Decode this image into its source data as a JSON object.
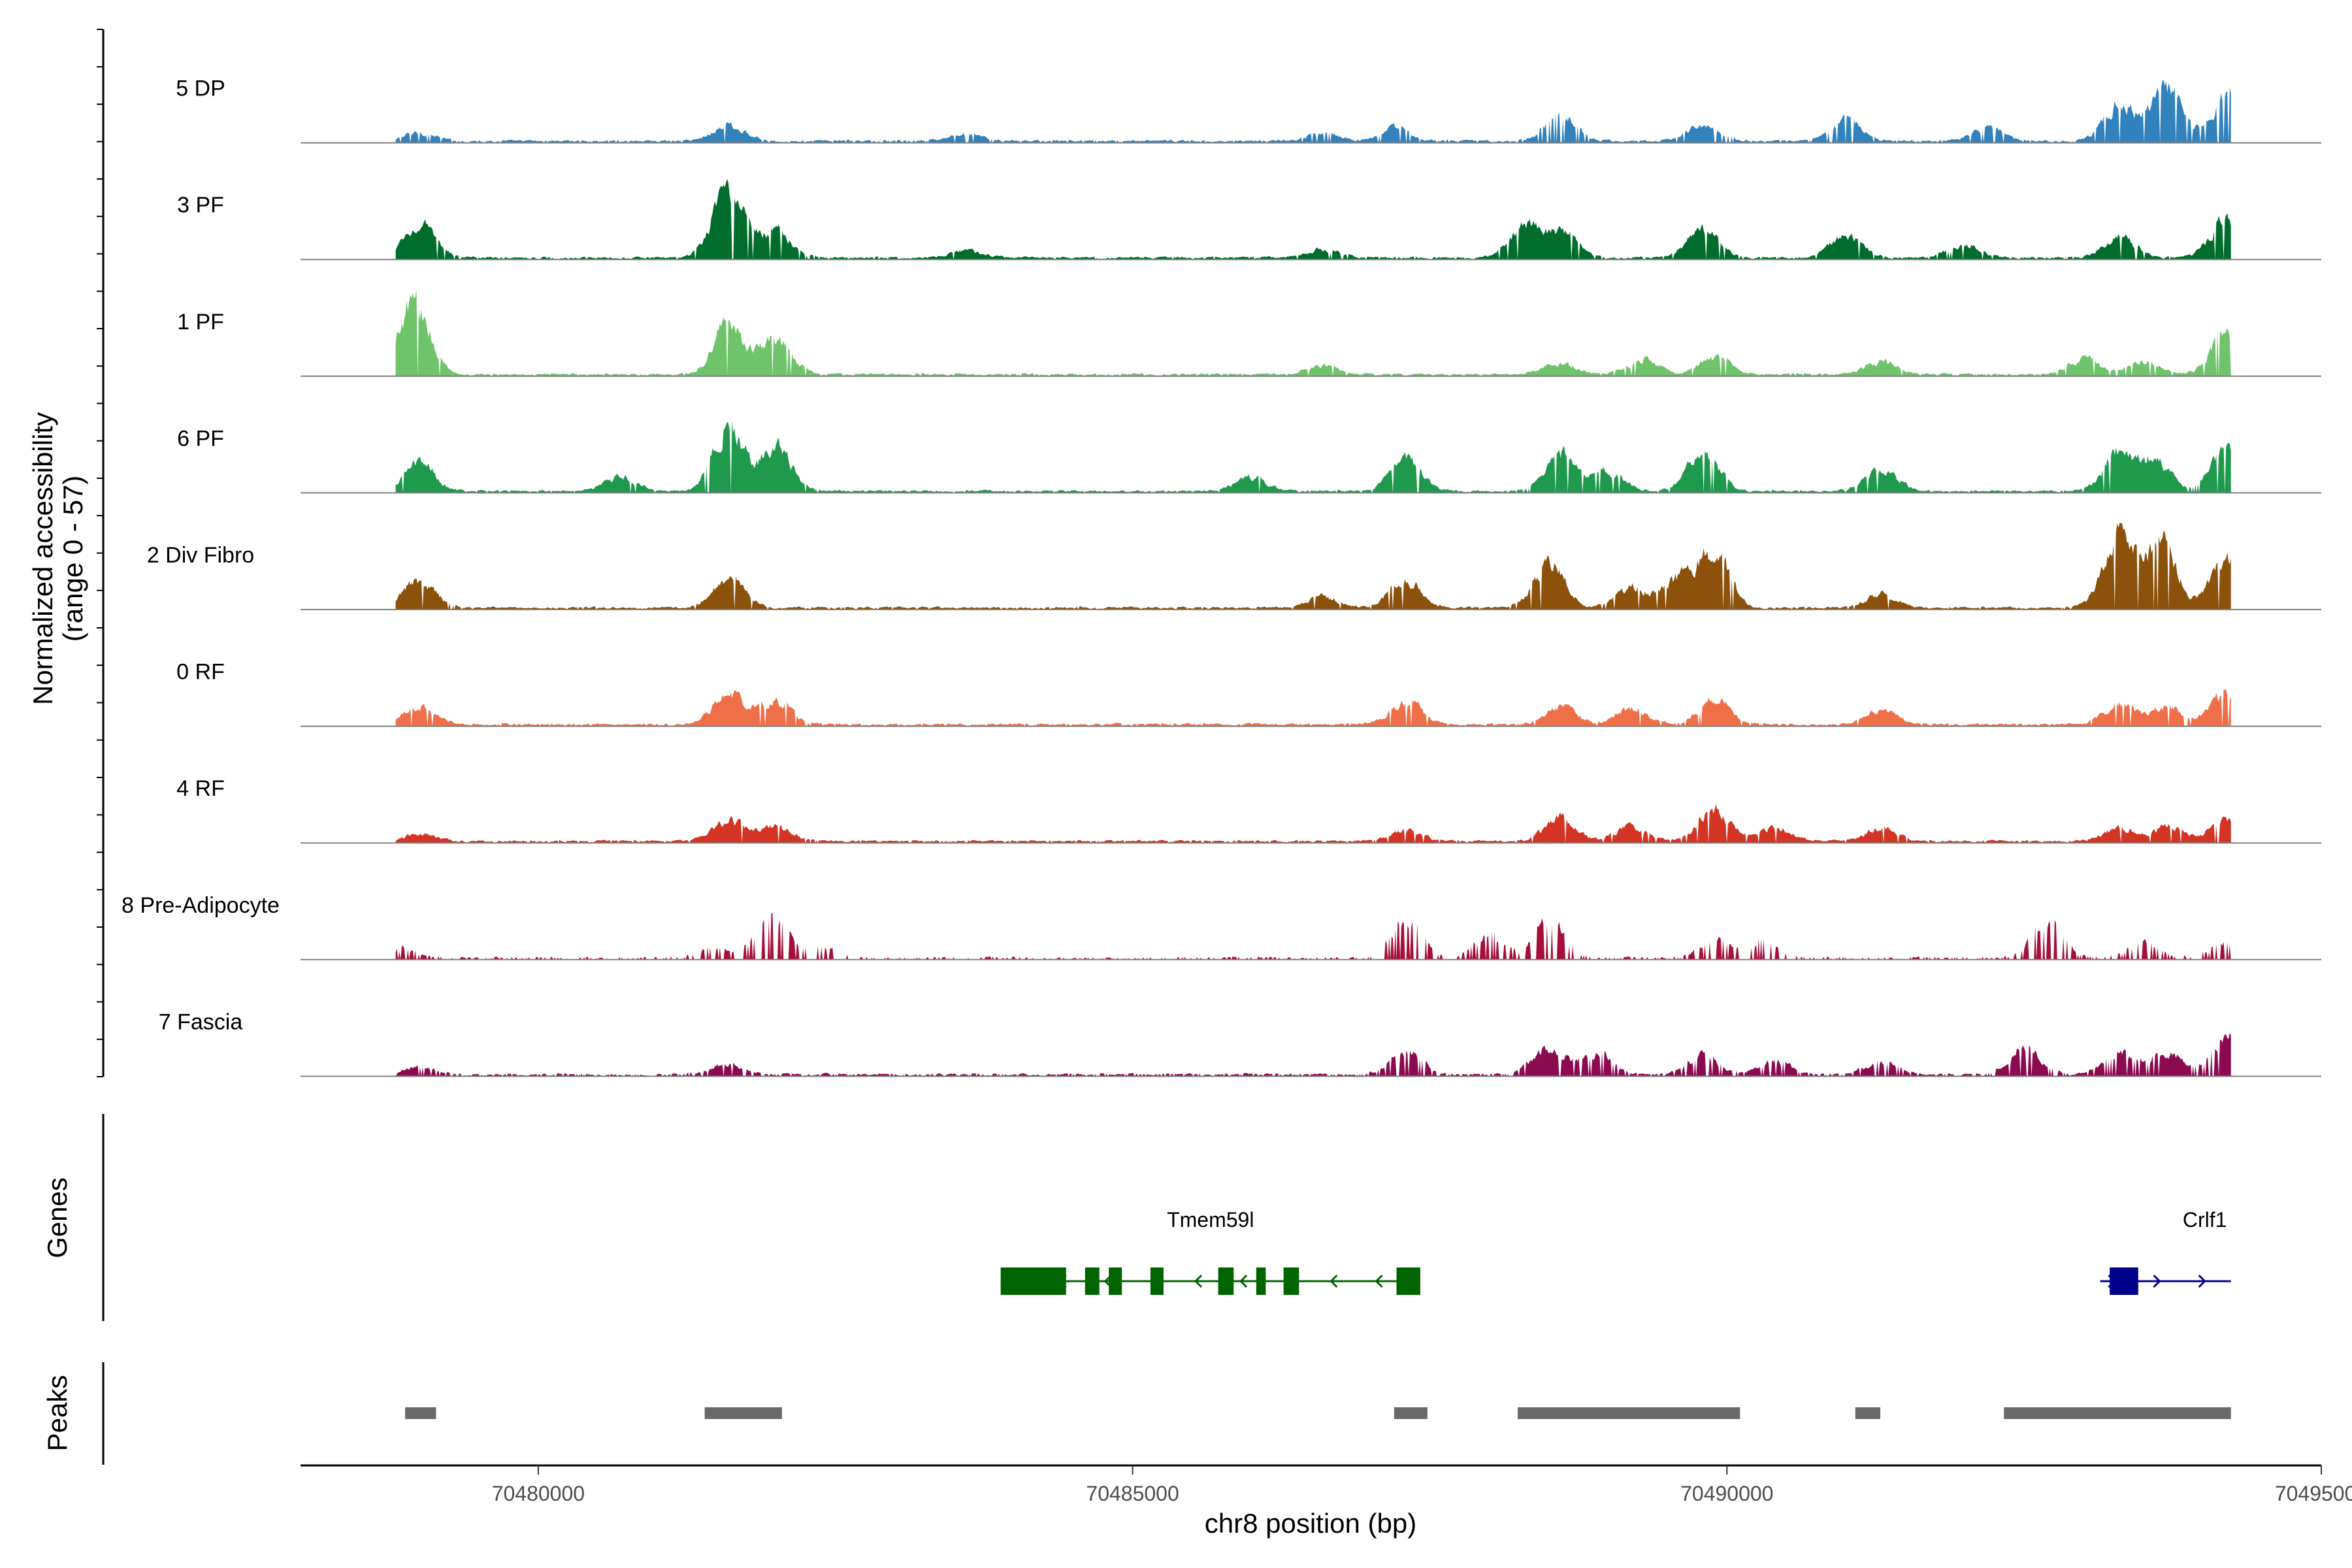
{
  "chart_data": {
    "type": "area",
    "title": "",
    "ylabel": "Normalized accessibility",
    "ylabel_sub": "(range 0 - 57)",
    "ylim": [
      0,
      57
    ],
    "xlabel": "chr8 position (bp)",
    "xlim": [
      70478000,
      70495000
    ],
    "data_range": [
      70478800,
      70494240
    ],
    "x_ticks": [
      70480000,
      70485000,
      70490000,
      70495000
    ],
    "x_tick_labels": [
      "70480000",
      "70485000",
      "70490000",
      "70495000"
    ],
    "series": [
      {
        "name": "5 DP",
        "color": "#3182bd",
        "sparsity": 0.12,
        "peaks": [
          [
            70479000,
            0.12
          ],
          [
            70481600,
            0.22
          ],
          [
            70483600,
            0.1
          ],
          [
            70486600,
            0.12
          ],
          [
            70487200,
            0.18
          ],
          [
            70488600,
            0.4
          ],
          [
            70489800,
            0.22
          ],
          [
            70491000,
            0.3
          ],
          [
            70492200,
            0.18
          ],
          [
            70493300,
            0.55
          ],
          [
            70493700,
            0.75
          ],
          [
            70494200,
            0.62
          ]
        ]
      },
      {
        "name": "3 PF",
        "color": "#006d2c",
        "sparsity": 0.08,
        "peaks": [
          [
            70479000,
            0.48
          ],
          [
            70481600,
            0.95
          ],
          [
            70482000,
            0.4
          ],
          [
            70483600,
            0.1
          ],
          [
            70486600,
            0.12
          ],
          [
            70488300,
            0.45
          ],
          [
            70488600,
            0.4
          ],
          [
            70489800,
            0.4
          ],
          [
            70491000,
            0.35
          ],
          [
            70492000,
            0.2
          ],
          [
            70493300,
            0.3
          ],
          [
            70494200,
            0.55
          ]
        ]
      },
      {
        "name": "1 PF",
        "color": "#6fc36a",
        "sparsity": 0.06,
        "peaks": [
          [
            70478950,
            1.05
          ],
          [
            70481600,
            0.7
          ],
          [
            70482000,
            0.5
          ],
          [
            70486600,
            0.12
          ],
          [
            70488600,
            0.16
          ],
          [
            70489300,
            0.22
          ],
          [
            70489900,
            0.25
          ],
          [
            70491300,
            0.18
          ],
          [
            70493000,
            0.22
          ],
          [
            70493500,
            0.18
          ],
          [
            70494200,
            0.55
          ]
        ]
      },
      {
        "name": "6 PF",
        "color": "#1f9a4d",
        "sparsity": 0.06,
        "peaks": [
          [
            70479000,
            0.4
          ],
          [
            70480700,
            0.2
          ],
          [
            70481600,
            0.95
          ],
          [
            70482000,
            0.6
          ],
          [
            70486000,
            0.2
          ],
          [
            70487300,
            0.45
          ],
          [
            70488600,
            0.5
          ],
          [
            70489000,
            0.28
          ],
          [
            70489800,
            0.55
          ],
          [
            70491300,
            0.3
          ],
          [
            70493300,
            0.55
          ],
          [
            70493600,
            0.4
          ],
          [
            70494200,
            0.55
          ]
        ]
      },
      {
        "name": "2 Div Fibro",
        "color": "#8c510a",
        "sparsity": 0.06,
        "peaks": [
          [
            70479000,
            0.4
          ],
          [
            70481600,
            0.42
          ],
          [
            70486600,
            0.15
          ],
          [
            70487300,
            0.4
          ],
          [
            70488500,
            0.65
          ],
          [
            70489200,
            0.3
          ],
          [
            70489600,
            0.4
          ],
          [
            70489900,
            0.8
          ],
          [
            70491300,
            0.2
          ],
          [
            70493300,
            1.1
          ],
          [
            70493650,
            0.95
          ],
          [
            70494200,
            0.65
          ]
        ]
      },
      {
        "name": "0 RF",
        "color": "#ef6f49",
        "sparsity": 0.06,
        "peaks": [
          [
            70479000,
            0.26
          ],
          [
            70481600,
            0.45
          ],
          [
            70482000,
            0.33
          ],
          [
            70487300,
            0.33
          ],
          [
            70488600,
            0.25
          ],
          [
            70489200,
            0.22
          ],
          [
            70489900,
            0.35
          ],
          [
            70491300,
            0.2
          ],
          [
            70493300,
            0.28
          ],
          [
            70493700,
            0.25
          ],
          [
            70494200,
            0.45
          ]
        ]
      },
      {
        "name": "4 RF",
        "color": "#d33424",
        "sparsity": 0.06,
        "peaks": [
          [
            70479000,
            0.1
          ],
          [
            70481600,
            0.3
          ],
          [
            70482000,
            0.2
          ],
          [
            70487300,
            0.15
          ],
          [
            70488600,
            0.33
          ],
          [
            70489200,
            0.22
          ],
          [
            70489900,
            0.45
          ],
          [
            70490400,
            0.2
          ],
          [
            70491300,
            0.18
          ],
          [
            70493300,
            0.18
          ],
          [
            70493700,
            0.2
          ],
          [
            70494200,
            0.3
          ]
        ]
      },
      {
        "name": "8 Pre-Adipocyte",
        "color": "#a50f3a",
        "sparsity": 0.6,
        "peaks": [
          [
            70478810,
            0.15
          ],
          [
            70481500,
            0.15
          ],
          [
            70481900,
            0.2
          ],
          [
            70482000,
            0.4
          ],
          [
            70482400,
            0.15
          ],
          [
            70487300,
            0.55
          ],
          [
            70488000,
            0.3
          ],
          [
            70488500,
            0.55
          ],
          [
            70489900,
            0.25
          ],
          [
            70490300,
            0.25
          ],
          [
            70492700,
            0.55
          ],
          [
            70493500,
            0.2
          ],
          [
            70494200,
            0.25
          ]
        ]
      },
      {
        "name": "7 Fascia",
        "color": "#8b0a50",
        "sparsity": 0.25,
        "peaks": [
          [
            70479000,
            0.1
          ],
          [
            70481600,
            0.15
          ],
          [
            70487300,
            0.35
          ],
          [
            70488500,
            0.4
          ],
          [
            70488900,
            0.3
          ],
          [
            70489800,
            0.28
          ],
          [
            70490400,
            0.2
          ],
          [
            70491300,
            0.2
          ],
          [
            70492500,
            0.4
          ],
          [
            70493300,
            0.3
          ],
          [
            70493700,
            0.35
          ],
          [
            70494200,
            0.55
          ]
        ]
      }
    ],
    "genes": [
      {
        "name": "Tmem59l",
        "start": 70483890,
        "end": 70487420,
        "strand": "-",
        "color": "#006400",
        "exons": [
          [
            70483890,
            70484440
          ],
          [
            70484600,
            70484720
          ],
          [
            70484800,
            70484910
          ],
          [
            70485150,
            70485260
          ],
          [
            70485720,
            70485850
          ],
          [
            70486040,
            70486120
          ],
          [
            70486270,
            70486400
          ],
          [
            70487220,
            70487420
          ]
        ]
      },
      {
        "name": "Crlf1",
        "start": 70493140,
        "end": 70494240,
        "strand": "+",
        "color": "#00008b",
        "exons": [
          [
            70493220,
            70493460
          ]
        ]
      }
    ],
    "gene_track_label": "Genes",
    "peaks": [
      [
        70478880,
        70479140
      ],
      [
        70481400,
        70482050
      ],
      [
        70487200,
        70487480
      ],
      [
        70488240,
        70490110
      ],
      [
        70491080,
        70491290
      ],
      [
        70492330,
        70494240
      ]
    ],
    "peak_track_label": "Peaks",
    "peak_color": "#696969"
  }
}
